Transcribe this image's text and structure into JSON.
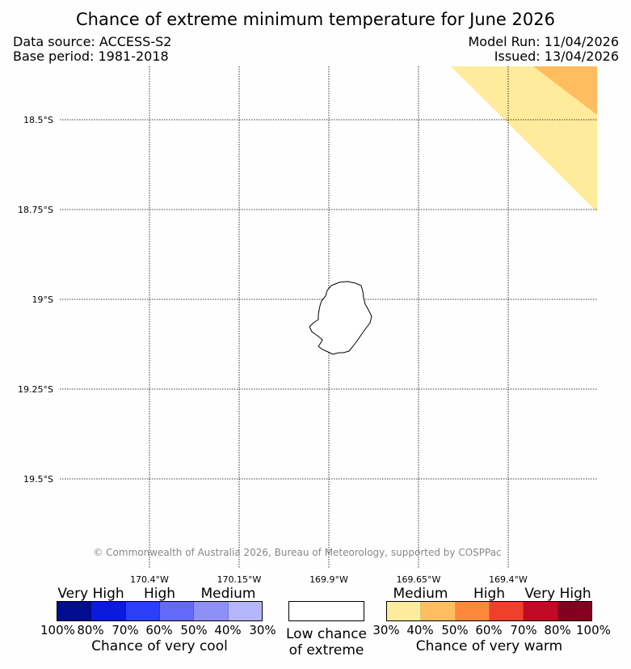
{
  "title": "Chance of extreme minimum temperature for June 2026",
  "data_source": "Data source: ACCESS-S2",
  "base_period": "Base period: 1981-2018",
  "model_run": "Model Run: 11/04/2026",
  "issued": "Issued: 13/04/2026",
  "copyright": "© Commonwealth of Australia 2026, Bureau of Meteorology, supported by COSPPac",
  "map": {
    "lat_labels": [
      "18.5°S",
      "18.75°S",
      "19°S",
      "19.25°S",
      "19.5°S"
    ],
    "lon_labels": [
      "170.4°W",
      "170.15°W",
      "169.9°W",
      "169.65°W",
      "169.4°W"
    ],
    "island_name": "",
    "shading": [
      {
        "category": "Medium warm (30-40%)",
        "color": "#ffeb9b"
      },
      {
        "category": "Medium warm (40-50%)",
        "color": "#ffbd5f"
      }
    ]
  },
  "legend": {
    "cool": {
      "title": "Chance of very cool",
      "groups": [
        "Very High",
        "High",
        "Medium"
      ],
      "ticks": [
        "100%",
        "80%",
        "70%",
        "60%",
        "50%",
        "40%",
        "30%"
      ],
      "colors": [
        "#000c91",
        "#0b1bdb",
        "#2b3ff7",
        "#6469f7",
        "#8e90f8",
        "#b5b6fb"
      ]
    },
    "neutral": {
      "title_line1": "Low chance",
      "title_line2": "of extreme",
      "color": "#ffffff"
    },
    "warm": {
      "title": "Chance of very warm",
      "groups": [
        "Medium",
        "High",
        "Very High"
      ],
      "ticks": [
        "30%",
        "40%",
        "50%",
        "60%",
        "70%",
        "80%",
        "100%"
      ],
      "colors": [
        "#ffeb9b",
        "#ffbd5f",
        "#fd8839",
        "#ef402b",
        "#c10a25",
        "#85001f"
      ]
    }
  }
}
